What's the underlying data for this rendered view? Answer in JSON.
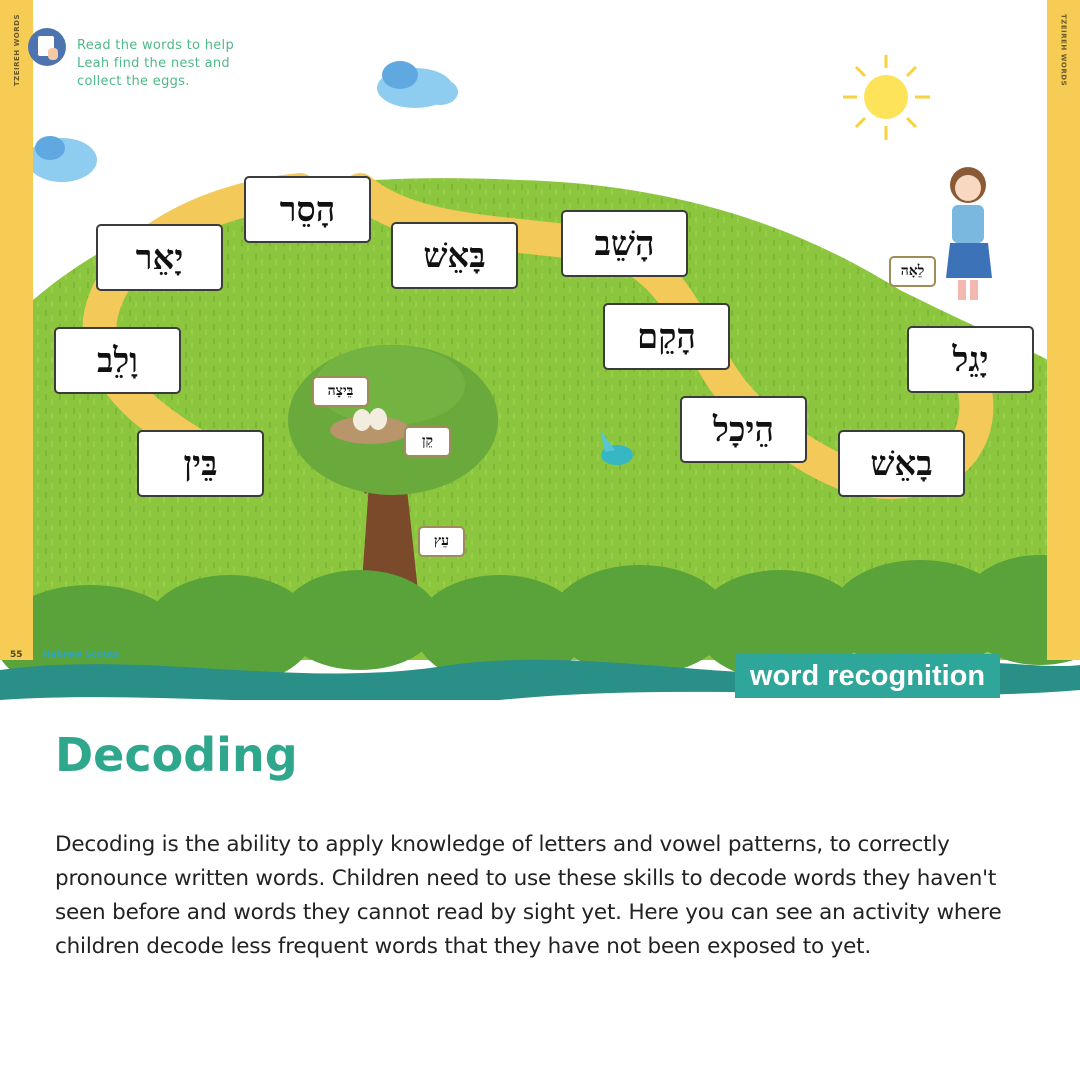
{
  "illustration": {
    "side_label": "TZEIREH WORDS",
    "instruction": "Read the words to help Leah find the nest and collect the eggs.",
    "instruction_icon": "reading-hand-icon",
    "words": [
      "הָסֵר",
      "יָאֵר",
      "בָּאֵשׁ",
      "הָשֵׁב",
      "וָלֵב",
      "הָקֵם",
      "יָגֵל",
      "בֵּין",
      "הֵיכָל",
      "בָאֵשׁ"
    ],
    "tags": {
      "egg": "בֵּיצָה",
      "nest": "קֵן",
      "tree": "עֵץ",
      "leah": "לֵאָה"
    },
    "page_number": "55",
    "brand": "Hebrew Scouts",
    "banner": "word recognition",
    "colors": {
      "grass": "#8cc63f",
      "path": "#f3c95a",
      "sidebar": "#f7cc55",
      "rope": "#2a8f86",
      "banner": "#2fa69a"
    }
  },
  "article": {
    "title": "Decoding",
    "body": "Decoding is the ability to apply knowledge of letters and vowel patterns, to correctly pronounce written words. Children need to use these skills to decode words they haven't seen before and words they cannot read by sight yet. Here you can see an activity where children decode less frequent words that they have not been exposed to yet."
  }
}
